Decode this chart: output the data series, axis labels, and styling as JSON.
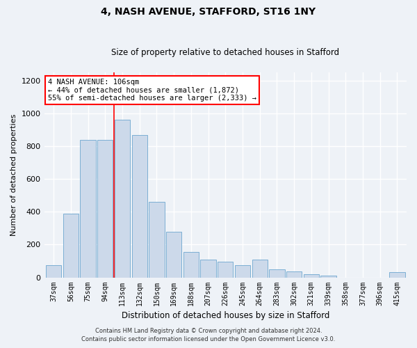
{
  "title": "4, NASH AVENUE, STAFFORD, ST16 1NY",
  "subtitle": "Size of property relative to detached houses in Stafford",
  "xlabel": "Distribution of detached houses by size in Stafford",
  "ylabel": "Number of detached properties",
  "footnote1": "Contains HM Land Registry data © Crown copyright and database right 2024.",
  "footnote2": "Contains public sector information licensed under the Open Government Licence v3.0.",
  "categories": [
    "37sqm",
    "56sqm",
    "75sqm",
    "94sqm",
    "113sqm",
    "132sqm",
    "150sqm",
    "169sqm",
    "188sqm",
    "207sqm",
    "226sqm",
    "245sqm",
    "264sqm",
    "283sqm",
    "302sqm",
    "321sqm",
    "339sqm",
    "358sqm",
    "377sqm",
    "396sqm",
    "415sqm"
  ],
  "values": [
    75,
    390,
    840,
    840,
    960,
    870,
    460,
    280,
    155,
    110,
    95,
    75,
    110,
    50,
    35,
    20,
    10,
    0,
    0,
    0,
    30
  ],
  "bar_color": "#ccd9ea",
  "bar_edgecolor": "#7bafd4",
  "highlight_line_index": 4,
  "annotation_text": "4 NASH AVENUE: 106sqm\n← 44% of detached houses are smaller (1,872)\n55% of semi-detached houses are larger (2,333) →",
  "annotation_box_edgecolor": "red",
  "ylim": [
    0,
    1250
  ],
  "yticks": [
    0,
    200,
    400,
    600,
    800,
    1000,
    1200
  ],
  "background_color": "#eef2f7",
  "axes_background": "#eef2f7",
  "grid_color": "white",
  "title_fontsize": 10,
  "subtitle_fontsize": 8.5,
  "ylabel_fontsize": 8,
  "xlabel_fontsize": 8.5,
  "tick_fontsize": 7,
  "annotation_fontsize": 7.5,
  "footnote_fontsize": 6
}
